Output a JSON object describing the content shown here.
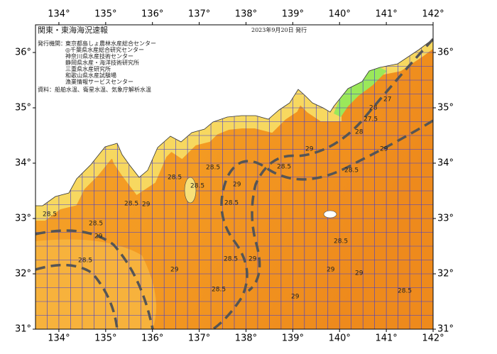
{
  "map": {
    "title": "関東・東海海況速報",
    "date": "2023年9月20日 発行",
    "issuer_label": "発行機関：",
    "issuers": [
      "東京都島しょ農林水産総合センター",
      "◎千葉県水産総合研究センター",
      "神奈川県水産技術センター",
      "静岡県水産・海洋技術研究所",
      "三重県水産研究所",
      "和歌山県水産試験場",
      "漁業情報サービスセンター"
    ],
    "source": "資料：船舶水温、衛星水温、気象庁解析水温",
    "xlim": [
      133.5,
      142
    ],
    "ylim": [
      31,
      36.5
    ],
    "lon_ticks": [
      {
        "value": 134,
        "label": "134°"
      },
      {
        "value": 135,
        "label": "135°"
      },
      {
        "value": 136,
        "label": "136°"
      },
      {
        "value": 137,
        "label": "137°"
      },
      {
        "value": 138,
        "label": "138°"
      },
      {
        "value": 139,
        "label": "139°"
      },
      {
        "value": 140,
        "label": "140°"
      },
      {
        "value": 141,
        "label": "141°"
      },
      {
        "value": 142,
        "label": "142°"
      }
    ],
    "lat_ticks": [
      {
        "value": 31,
        "label": "31°"
      },
      {
        "value": 32,
        "label": "32°"
      },
      {
        "value": 33,
        "label": "33°"
      },
      {
        "value": 34,
        "label": "34°"
      },
      {
        "value": 35,
        "label": "35°"
      },
      {
        "value": 36,
        "label": "36°"
      }
    ],
    "contour_labels": [
      "28.5",
      "28.5",
      "29",
      "28.5",
      "28.5",
      "29",
      "28.5",
      "28.5",
      "29",
      "28.5",
      "28",
      "27.5",
      "27",
      "28",
      "29",
      "28.5",
      "29",
      "28.5",
      "29",
      "28.5",
      "29",
      "28.5",
      "29",
      "29",
      "28.5",
      "28.5",
      "29",
      "28.5"
    ]
  }
}
